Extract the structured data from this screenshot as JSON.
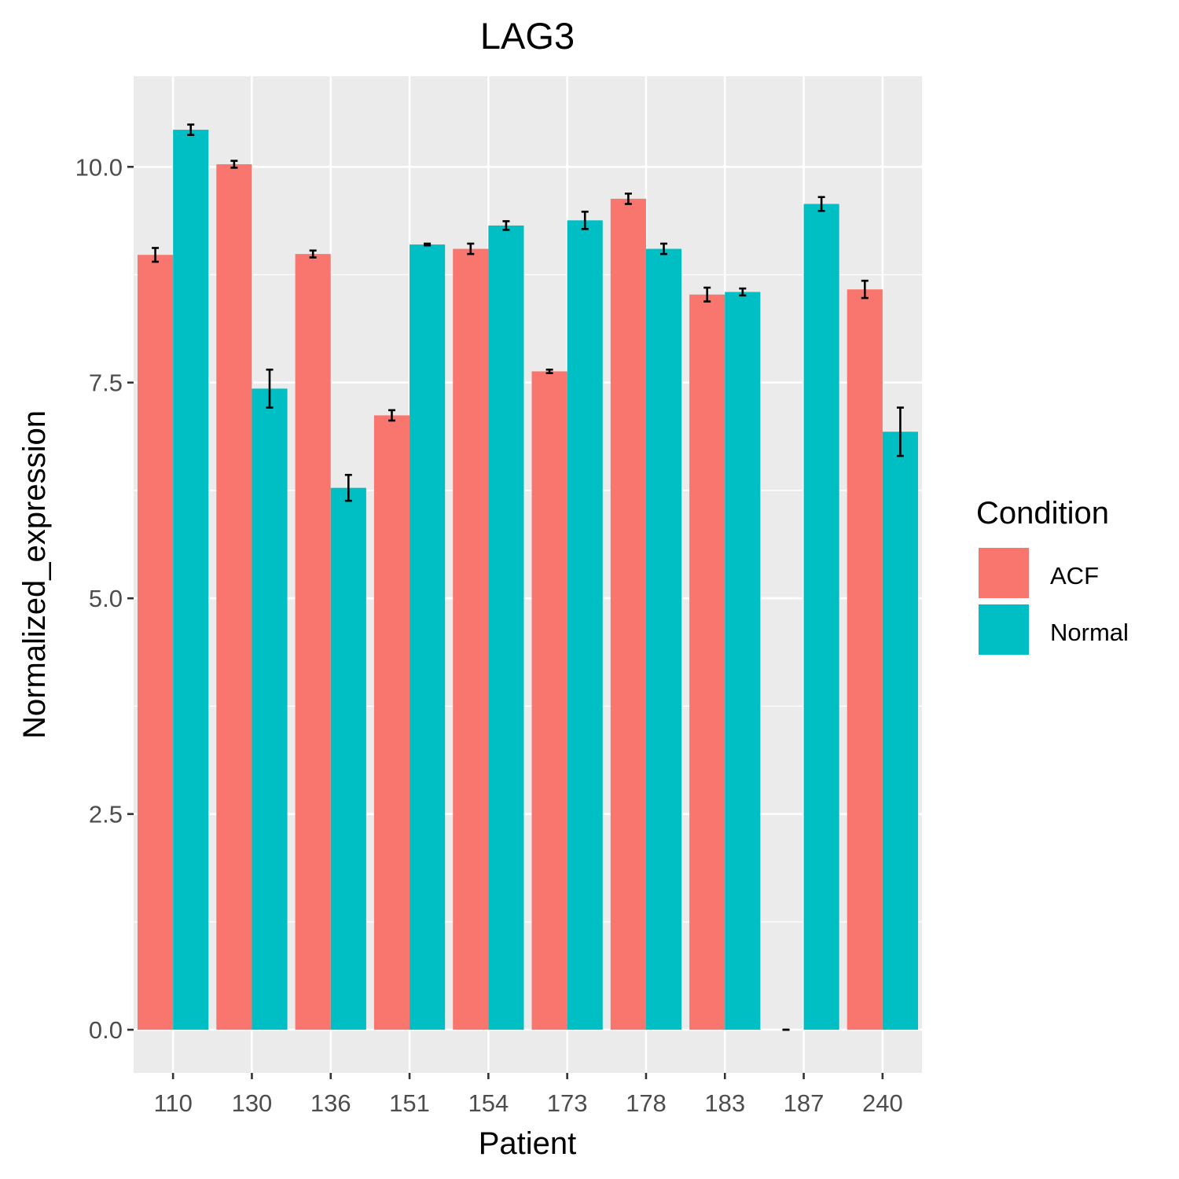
{
  "chart_data": {
    "type": "bar",
    "title": "LAG3",
    "xlabel": "Patient",
    "ylabel": "Normalized_expression",
    "categories": [
      "110",
      "130",
      "136",
      "151",
      "154",
      "173",
      "178",
      "183",
      "187",
      "240"
    ],
    "ylim": [
      -0.5,
      11.05
    ],
    "yticks": [
      "0.0",
      "2.5",
      "5.0",
      "7.5",
      "10.0"
    ],
    "grid": true,
    "legend": {
      "title": "Condition",
      "placement": "right"
    },
    "series": [
      {
        "name": "ACF",
        "color": "#F8766D",
        "values": [
          8.98,
          10.03,
          8.99,
          7.12,
          9.05,
          7.63,
          9.63,
          8.52,
          0.0,
          8.58
        ],
        "error": [
          0.08,
          0.04,
          0.04,
          0.06,
          0.06,
          0.02,
          0.06,
          0.08,
          0.0,
          0.1
        ]
      },
      {
        "name": "Normal",
        "color": "#00BFC4",
        "values": [
          10.43,
          7.43,
          6.28,
          9.1,
          9.32,
          9.38,
          9.05,
          8.55,
          9.57,
          6.93
        ],
        "error": [
          0.06,
          0.22,
          0.15,
          0.01,
          0.05,
          0.1,
          0.06,
          0.04,
          0.08,
          0.28
        ]
      }
    ],
    "colors": {
      "panel_background": "#EBEBEB",
      "grid": "#FFFFFF",
      "error_bar": "#000000"
    }
  }
}
